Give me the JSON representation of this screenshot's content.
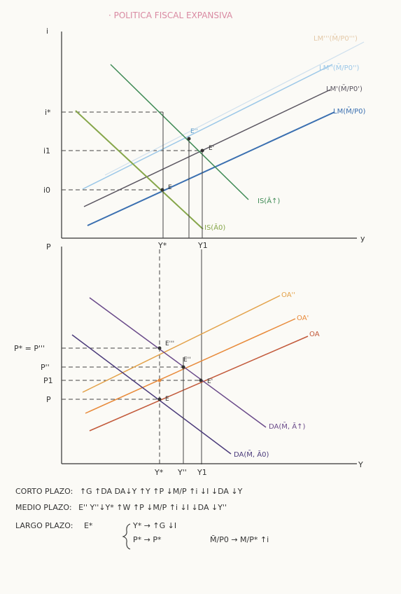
{
  "title": "· POLITICA FISCAL EXPANSIVA",
  "top_graph": {
    "y_axis": "i",
    "x_axis": "y",
    "y_levels": [
      "i*",
      "i1",
      "i0"
    ],
    "x_levels": [
      "Y*",
      "Y1"
    ],
    "curves": {
      "lm2": "LM''(M̄/P0'')",
      "lm1": "LM'(M̄/P0')",
      "lm0": "LM(M̄/P0)",
      "lm_faint": "LM'''(M̄/P0''')",
      "is1": "IS(Ā↑)",
      "is0": "IS(Ā0)"
    },
    "points": [
      "E''",
      "E'",
      "E"
    ],
    "colors": {
      "lm0": "#3a6fb0",
      "lm1": "#5a5560",
      "lm2": "#9cc8e8",
      "is1": "#3e8a55",
      "is0": "#86a64a"
    }
  },
  "bottom_graph": {
    "y_axis": "P",
    "x_axis": "Y",
    "y_levels": [
      "P* = P'''",
      "P''",
      "P1",
      "P"
    ],
    "x_levels": [
      "Y*",
      "Y''",
      "Y1"
    ],
    "curves": {
      "oa2": "OA''",
      "oa1": "OA'",
      "oa0": "OA",
      "da1": "DA(M̄, Ā↑)",
      "da0": "DA(M̄, Ā0)"
    },
    "points": [
      "E'''",
      "E''",
      "E'",
      "E"
    ],
    "colors": {
      "oa2": "#e3a24a",
      "oa1": "#e88a3a",
      "oa0": "#c2593a",
      "da1": "#6a4a8a",
      "da0": "#4a3a7a"
    }
  },
  "notes": {
    "corto_label": "CORTO PLAZO:",
    "corto": "↑G ↑DA DA↓Y ↑Y ↑P ↓M/P ↑i ↓I ↓DA ↓Y",
    "medio_label": "MEDIO PLAZO:",
    "medio": "E'' Y''↓Y* ↑W ↑P ↓M/P ↑i ↓I ↓DA ↓Y''",
    "largo_label": "LARGO PLAZO:",
    "largo_point": "E*",
    "largo_line1": "Y* → ↑G ↓I",
    "largo_line2": "P* → P*",
    "largo_tail": "M̄/P0 → M/P* ↑i"
  }
}
